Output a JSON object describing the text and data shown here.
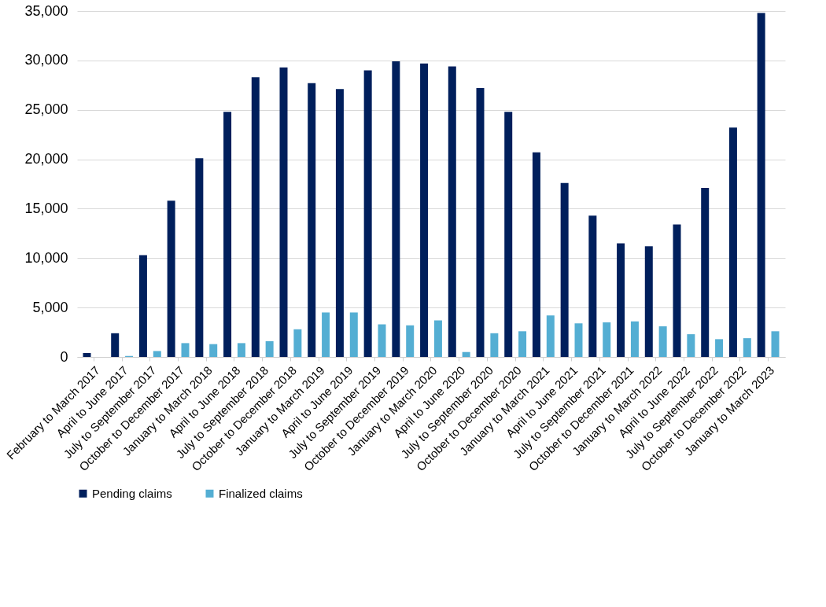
{
  "chart_data": {
    "type": "bar",
    "categories": [
      "February to March 2017",
      "April to June 2017",
      "July to September 2017",
      "October to December 2017",
      "January to March 2018",
      "April to June 2018",
      "July to September 2018",
      "October to December 2018",
      "January to March 2019",
      "April to June 2019",
      "July to September 2019",
      "October to December 2019",
      "January to March 2020",
      "April to June 2020",
      "July to September 2020",
      "October to December 2020",
      "January to March 2021",
      "April to June 2021",
      "July to September 2021",
      "October to December 2021",
      "January to March 2022",
      "April to June 2022",
      "July to September 2022",
      "October to December 2022",
      "January to March 2023"
    ],
    "series": [
      {
        "name": "Pending claims",
        "color": "#001f5c",
        "values": [
          400,
          2400,
          10300,
          15800,
          20100,
          24800,
          28300,
          29300,
          27700,
          27100,
          29000,
          29900,
          29700,
          29400,
          27200,
          24800,
          20700,
          17600,
          14300,
          11500,
          11200,
          13400,
          17100,
          23200,
          34800
        ]
      },
      {
        "name": "Finalized claims",
        "color": "#54aed3",
        "values": [
          0,
          100,
          600,
          1400,
          1300,
          1400,
          1600,
          2800,
          4500,
          4500,
          3300,
          3200,
          3700,
          500,
          2400,
          2600,
          4200,
          3400,
          3500,
          3600,
          3100,
          2300,
          1800,
          1900,
          2600
        ]
      }
    ],
    "ylim": [
      0,
      35000
    ],
    "yticks": [
      0,
      {
        "value": 5000,
        "label": "5,000"
      },
      {
        "value": 10000,
        "label": "10,000"
      },
      {
        "value": 15000,
        "label": "15,000"
      },
      {
        "value": 20000,
        "label": "20,000"
      },
      {
        "value": 25000,
        "label": "25,000"
      },
      {
        "value": 30000,
        "label": "30,000"
      },
      {
        "value": 35000,
        "label": "35,000"
      }
    ],
    "grid": "y",
    "legend": "bottom"
  }
}
